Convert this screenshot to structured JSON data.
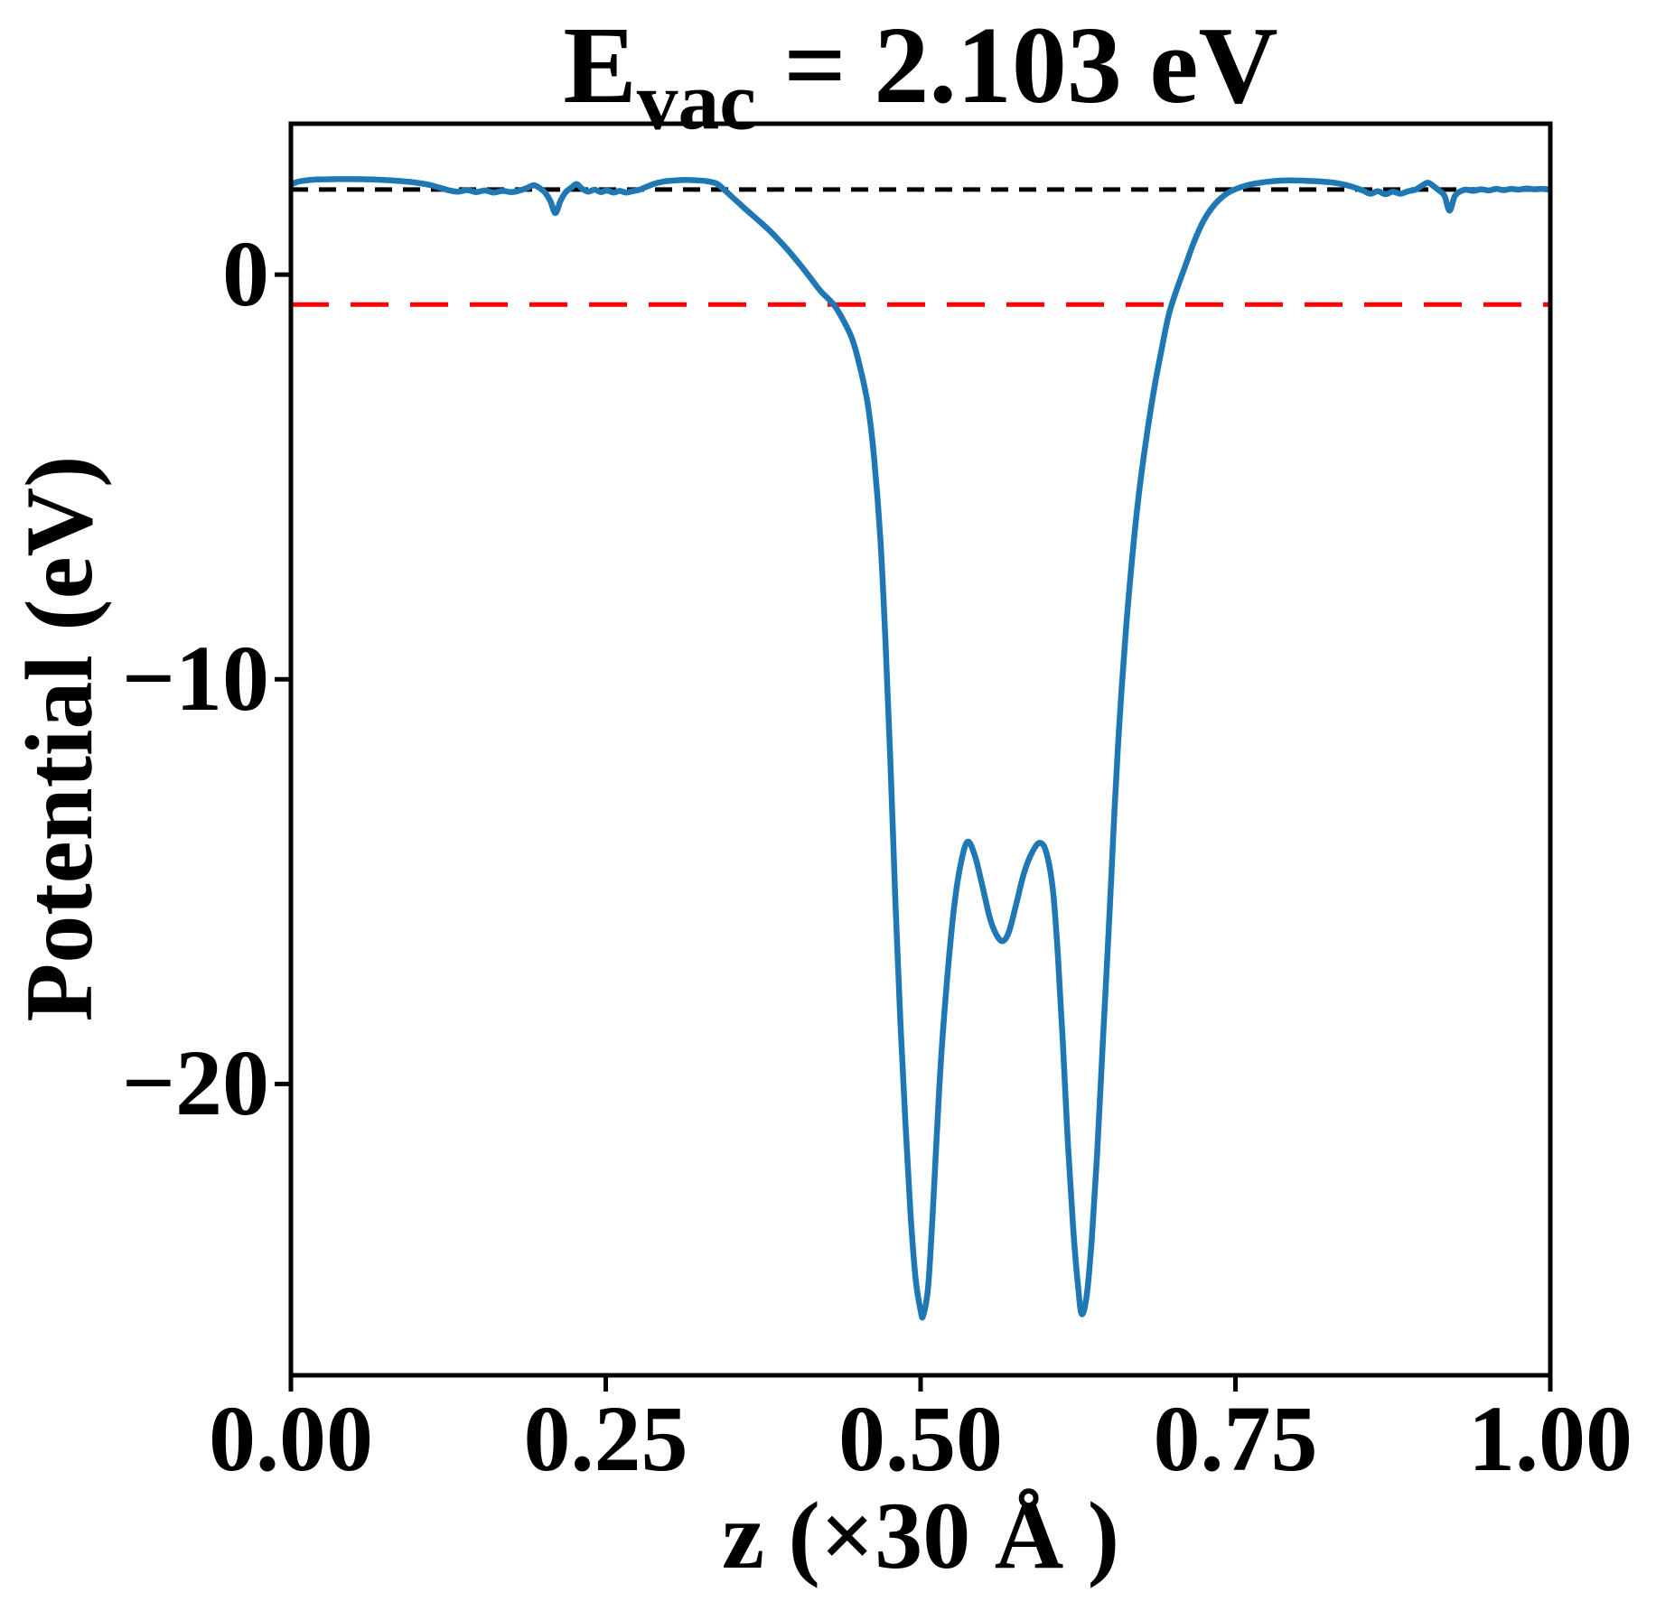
{
  "figure": {
    "title": {
      "main": "E",
      "sub": "vac",
      "rest": " = 2.103 eV"
    },
    "xlabel": "z (×30 Å )",
    "ylabel": "Potential (eV)"
  },
  "colors": {
    "curve": "#1f77b4",
    "vacuum_line": "#000000",
    "reference_line": "#ff0000",
    "axes": "#000000",
    "background": "#ffffff"
  },
  "chart_data": {
    "type": "line",
    "title": "E_vac = 2.103 eV",
    "xlabel": "z (×30 Å )",
    "ylabel": "Potential (eV)",
    "xlim": [
      0.0,
      1.0
    ],
    "ylim": [
      -27.2,
      3.73
    ],
    "grid": false,
    "legend": "none",
    "x_ticks": [
      {
        "label": "0.00",
        "value": 0.0
      },
      {
        "label": "0.25",
        "value": 0.25
      },
      {
        "label": "0.50",
        "value": 0.5
      },
      {
        "label": "0.75",
        "value": 0.75
      },
      {
        "label": "1.00",
        "value": 1.0
      }
    ],
    "y_ticks": [
      {
        "label": "0",
        "value": 0
      },
      {
        "label": "−10",
        "value": -10
      },
      {
        "label": "−20",
        "value": -20
      }
    ],
    "reference_lines": [
      {
        "name": "vacuum-level",
        "y": 2.103,
        "color": "#000000",
        "style": "dashed",
        "dash": [
          19,
          12
        ]
      },
      {
        "name": "reference-level",
        "y": -0.74,
        "color": "#ff0000",
        "style": "dashed",
        "dash": [
          42,
          24
        ]
      }
    ],
    "series": [
      {
        "name": "planar-averaged-potential",
        "color": "#1f77b4",
        "x": [
          0.0,
          0.004,
          0.01,
          0.02,
          0.035,
          0.05,
          0.065,
          0.08,
          0.095,
          0.108,
          0.118,
          0.126,
          0.133,
          0.14,
          0.147,
          0.154,
          0.161,
          0.168,
          0.175,
          0.182,
          0.188,
          0.193,
          0.198,
          0.202,
          0.206,
          0.21,
          0.214,
          0.218,
          0.223,
          0.227,
          0.231,
          0.236,
          0.241,
          0.246,
          0.251,
          0.256,
          0.261,
          0.266,
          0.271,
          0.277,
          0.283,
          0.29,
          0.298,
          0.306,
          0.314,
          0.322,
          0.33,
          0.338,
          0.344,
          0.35,
          0.357,
          0.365,
          0.373,
          0.381,
          0.389,
          0.397,
          0.405,
          0.413,
          0.421,
          0.431,
          0.439,
          0.446,
          0.452,
          0.458,
          0.463,
          0.468,
          0.472,
          0.476,
          0.48,
          0.484,
          0.488,
          0.492,
          0.496,
          0.5,
          0.502,
          0.506,
          0.51,
          0.515,
          0.52,
          0.526,
          0.531,
          0.537,
          0.543,
          0.549,
          0.555,
          0.56,
          0.565,
          0.57,
          0.576,
          0.582,
          0.589,
          0.595,
          0.6,
          0.605,
          0.609,
          0.613,
          0.617,
          0.621,
          0.625,
          0.628,
          0.632,
          0.636,
          0.64,
          0.645,
          0.65,
          0.654,
          0.658,
          0.663,
          0.668,
          0.673,
          0.679,
          0.685,
          0.691,
          0.697,
          0.703,
          0.71,
          0.717,
          0.725,
          0.734,
          0.744,
          0.755,
          0.767,
          0.78,
          0.793,
          0.806,
          0.819,
          0.831,
          0.842,
          0.851,
          0.857,
          0.863,
          0.869,
          0.875,
          0.881,
          0.887,
          0.893,
          0.898,
          0.903,
          0.908,
          0.912,
          0.916,
          0.92,
          0.924,
          0.928,
          0.933,
          0.939,
          0.945,
          0.951,
          0.957,
          0.963,
          0.969,
          0.975,
          0.981,
          0.987,
          0.993,
          1.0
        ],
        "y": [
          2.22,
          2.28,
          2.32,
          2.35,
          2.36,
          2.36,
          2.35,
          2.33,
          2.29,
          2.23,
          2.15,
          2.08,
          2.05,
          2.09,
          2.04,
          2.08,
          2.03,
          2.07,
          2.04,
          2.08,
          2.15,
          2.21,
          2.13,
          2.02,
          1.82,
          1.52,
          1.82,
          2.03,
          2.16,
          2.24,
          2.13,
          2.05,
          2.1,
          2.04,
          2.08,
          2.03,
          2.07,
          2.03,
          2.06,
          2.1,
          2.18,
          2.26,
          2.31,
          2.33,
          2.34,
          2.33,
          2.31,
          2.25,
          2.1,
          1.93,
          1.73,
          1.51,
          1.29,
          1.06,
          0.8,
          0.52,
          0.22,
          -0.1,
          -0.42,
          -0.74,
          -1.15,
          -1.62,
          -2.3,
          -3.2,
          -4.5,
          -6.5,
          -9.0,
          -12.0,
          -15.5,
          -18.5,
          -21.0,
          -23.2,
          -24.8,
          -25.6,
          -25.73,
          -25.0,
          -23.0,
          -20.0,
          -17.8,
          -15.8,
          -14.7,
          -14.02,
          -14.35,
          -15.1,
          -15.9,
          -16.3,
          -16.47,
          -16.25,
          -15.55,
          -14.8,
          -14.25,
          -14.04,
          -14.3,
          -15.2,
          -16.8,
          -19.0,
          -21.5,
          -23.5,
          -25.0,
          -25.69,
          -25.2,
          -23.8,
          -21.8,
          -18.8,
          -15.8,
          -13.2,
          -11.0,
          -8.8,
          -7.0,
          -5.5,
          -4.1,
          -2.9,
          -1.9,
          -1.0,
          -0.4,
          0.2,
          0.8,
          1.35,
          1.75,
          2.02,
          2.17,
          2.26,
          2.31,
          2.33,
          2.32,
          2.3,
          2.26,
          2.18,
          2.08,
          2.0,
          2.06,
          1.99,
          2.05,
          2.0,
          2.06,
          2.1,
          2.2,
          2.27,
          2.17,
          2.07,
          1.95,
          1.58,
          1.93,
          2.05,
          2.1,
          2.07,
          2.11,
          2.08,
          2.12,
          2.09,
          2.12,
          2.1,
          2.13,
          2.11,
          2.12,
          2.1
        ]
      }
    ]
  }
}
